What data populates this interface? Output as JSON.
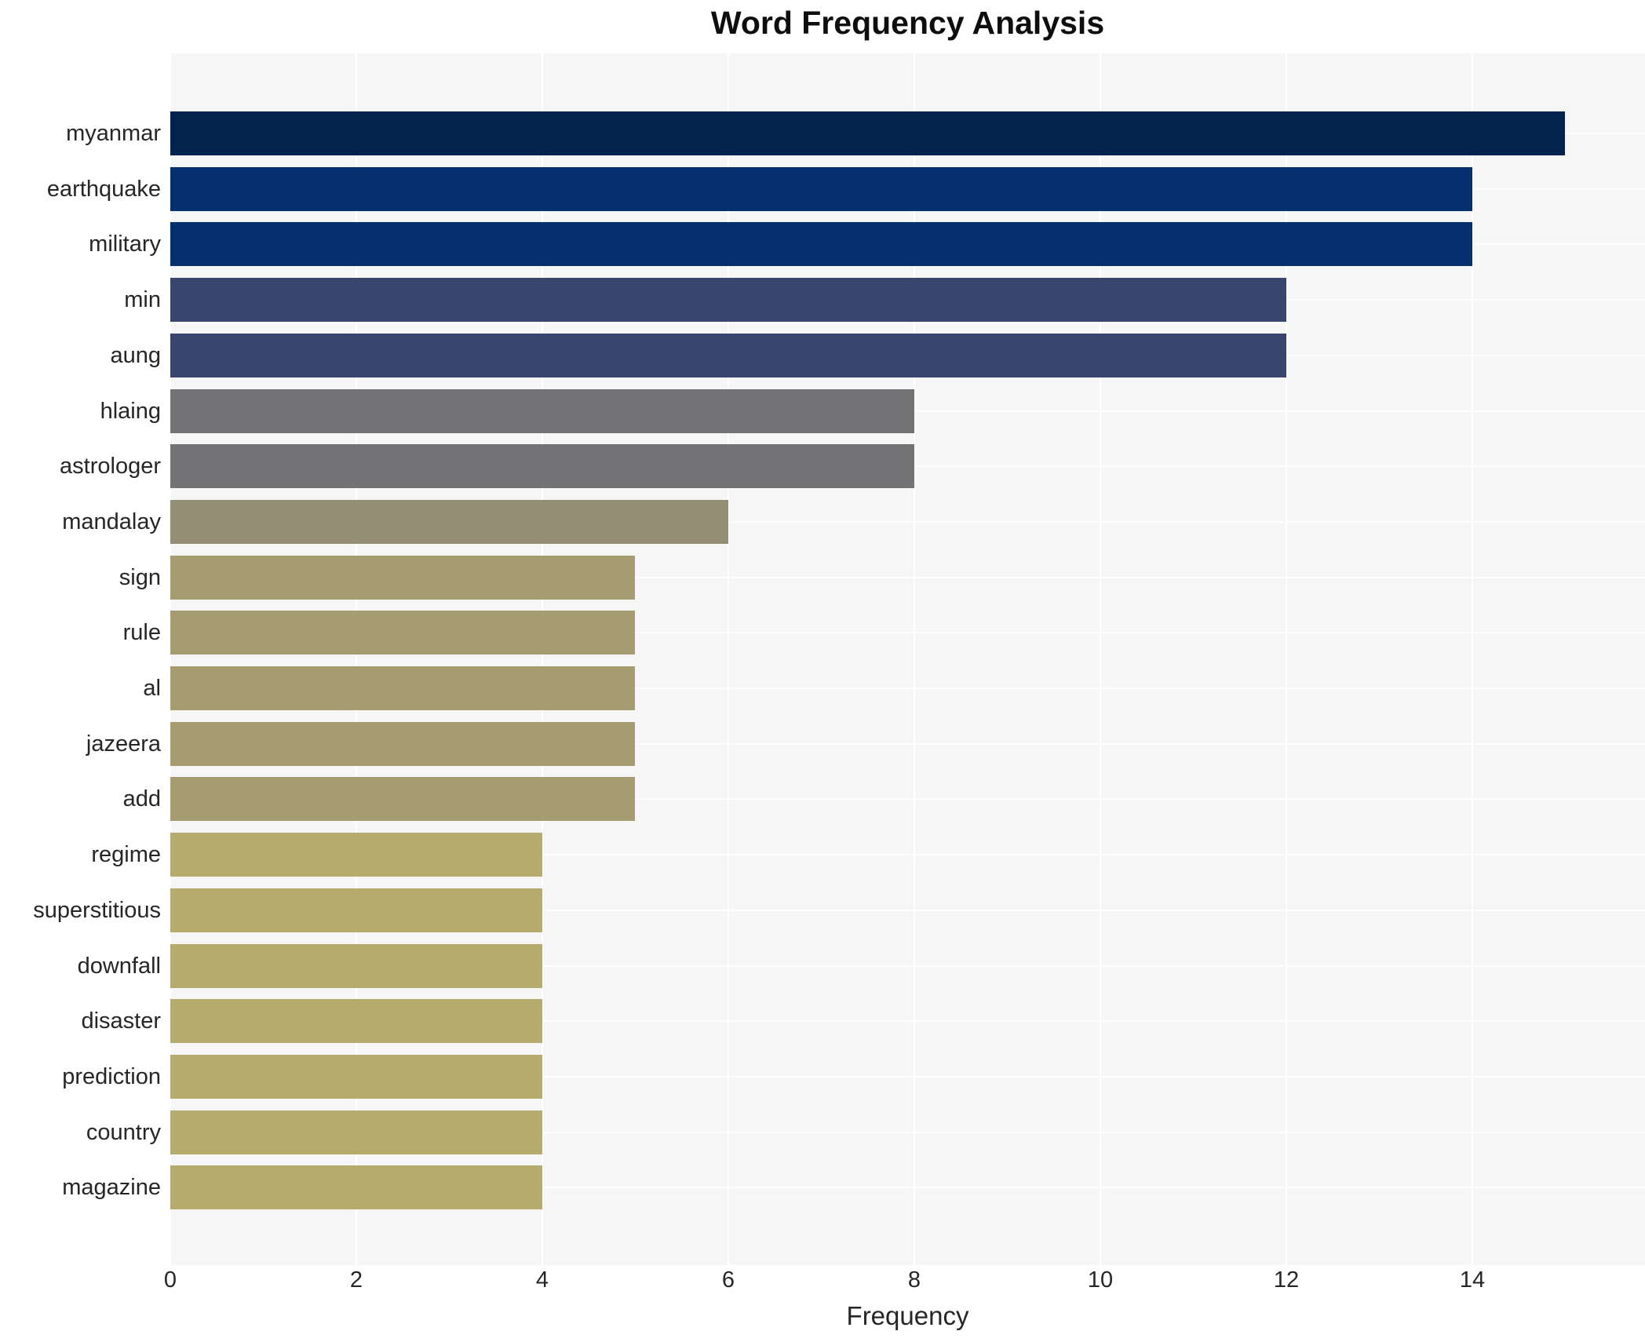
{
  "chart_data": {
    "type": "bar",
    "orientation": "horizontal",
    "title": "Word Frequency Analysis",
    "xlabel": "Frequency",
    "ylabel": "",
    "categories": [
      "myanmar",
      "earthquake",
      "military",
      "min",
      "aung",
      "hlaing",
      "astrologer",
      "mandalay",
      "sign",
      "rule",
      "al",
      "jazeera",
      "add",
      "regime",
      "superstitious",
      "downfall",
      "disaster",
      "prediction",
      "country",
      "magazine"
    ],
    "values": [
      15,
      14,
      14,
      12,
      12,
      8,
      8,
      6,
      5,
      5,
      5,
      5,
      5,
      4,
      4,
      4,
      4,
      4,
      4,
      4
    ],
    "bar_colors": [
      "#03234e",
      "#04316e",
      "#04316e",
      "#38466d",
      "#38466d",
      "#737274",
      "#737274",
      "#938e74",
      "#a59d71",
      "#a59d71",
      "#a59d71",
      "#a59d71",
      "#a59d71",
      "#b5ab6c",
      "#b5ab6c",
      "#b5ab6c",
      "#b5ab6c",
      "#b5ab6c",
      "#b5ab6c",
      "#b5ab6c"
    ],
    "x_ticks": [
      "0",
      "2",
      "4",
      "6",
      "8",
      "10",
      "12",
      "14"
    ],
    "x_tick_values": [
      0,
      2,
      4,
      6,
      8,
      10,
      12,
      14
    ],
    "xlim": [
      0,
      15.86
    ],
    "grid": true,
    "legend": "none",
    "plot_bg_color": "#f6f6f7",
    "figure_bg_color": "#ffffff",
    "gridline_color": "#ffffff",
    "text_color": "#262626",
    "title_color": "#0e0e0e"
  }
}
